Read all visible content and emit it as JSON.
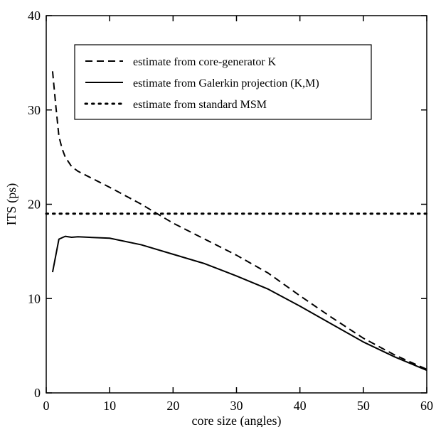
{
  "chart_data": {
    "type": "line",
    "title": "",
    "xlabel": "core size (angles)",
    "ylabel": "ITS (ps)",
    "xlim": [
      0,
      60
    ],
    "ylim": [
      0,
      40
    ],
    "xticks": [
      0,
      10,
      20,
      30,
      40,
      50,
      60
    ],
    "yticks": [
      0,
      10,
      20,
      30,
      40
    ],
    "grid": false,
    "legend_position": "top-right",
    "series": [
      {
        "name": "estimate from core-generator K",
        "style": "dashed",
        "color": "#000000",
        "x": [
          1,
          1.5,
          2,
          2.5,
          3,
          4,
          5,
          10,
          15,
          20,
          25,
          30,
          35,
          40,
          45,
          50,
          55,
          60
        ],
        "y": [
          34.1,
          30.5,
          27.2,
          25.9,
          25.0,
          24.0,
          23.5,
          21.8,
          20.0,
          18.0,
          16.3,
          14.6,
          12.7,
          10.3,
          8.0,
          5.8,
          4.0,
          2.5
        ]
      },
      {
        "name": "estimate from Galerkin projection (K,M)",
        "style": "solid",
        "color": "#000000",
        "x": [
          1,
          2,
          3,
          4,
          5,
          10,
          15,
          20,
          25,
          30,
          35,
          40,
          45,
          50,
          55,
          60
        ],
        "y": [
          12.8,
          16.3,
          16.6,
          16.5,
          16.55,
          16.4,
          15.7,
          14.7,
          13.7,
          12.4,
          11.0,
          9.2,
          7.3,
          5.4,
          3.8,
          2.4
        ]
      },
      {
        "name": "estimate from standard MSM",
        "style": "dotted",
        "color": "#000000",
        "x": [
          0,
          60
        ],
        "y": [
          19,
          19
        ]
      }
    ]
  }
}
